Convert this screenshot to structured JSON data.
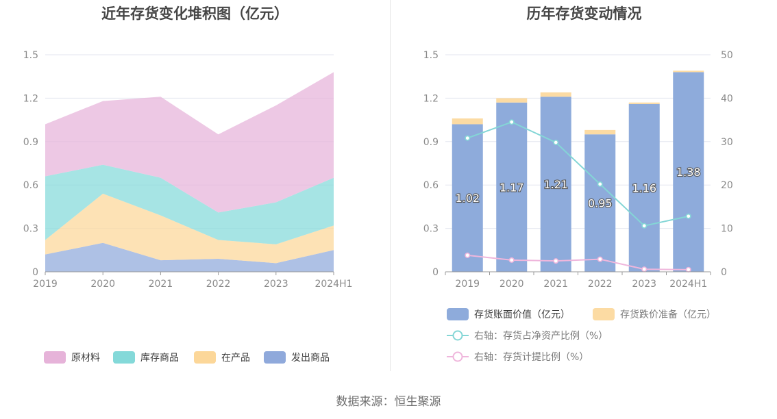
{
  "footer": {
    "source": "数据来源：恒生聚源"
  },
  "chart_data": [
    {
      "type": "area",
      "stacked": true,
      "title": "近年存货变化堆积图（亿元）",
      "categories": [
        "2019",
        "2020",
        "2021",
        "2022",
        "2023",
        "2024H1"
      ],
      "ylim": [
        0,
        1.5
      ],
      "yticks": [
        "0",
        "0.3",
        "0.6",
        "0.9",
        "1.2",
        "1.5"
      ],
      "grid": true,
      "legend_position": "bottom",
      "series": [
        {
          "name": "发出商品",
          "color": "#8fa9db",
          "values": [
            0.12,
            0.2,
            0.08,
            0.09,
            0.06,
            0.15
          ]
        },
        {
          "name": "在产品",
          "color": "#fcd799",
          "values": [
            0.1,
            0.34,
            0.31,
            0.13,
            0.13,
            0.17
          ]
        },
        {
          "name": "库存商品",
          "color": "#84d9d9",
          "values": [
            0.44,
            0.2,
            0.26,
            0.19,
            0.29,
            0.33
          ]
        },
        {
          "name": "原材料",
          "color": "#e6b3d9",
          "values": [
            0.36,
            0.44,
            0.56,
            0.54,
            0.67,
            0.73
          ]
        }
      ],
      "legend_order": [
        "原材料",
        "库存商品",
        "在产品",
        "发出商品"
      ]
    },
    {
      "type": "bar",
      "title": "历年存货变动情况",
      "categories": [
        "2019",
        "2020",
        "2021",
        "2022",
        "2023",
        "2024H1"
      ],
      "ylim": [
        0,
        1.5
      ],
      "yticks": [
        "0",
        "0.3",
        "0.6",
        "0.9",
        "1.2",
        "1.5"
      ],
      "y2lim": [
        0,
        50
      ],
      "y2ticks": [
        "0",
        "10",
        "20",
        "30",
        "40",
        "50"
      ],
      "grid": true,
      "legend_position": "bottom",
      "bars": [
        {
          "name": "存货账面价值（亿元）",
          "color": "#8eabdb",
          "values": [
            1.02,
            1.17,
            1.21,
            0.95,
            1.16,
            1.38
          ],
          "labels": [
            "1.02",
            "1.17",
            "1.21",
            "0.95",
            "1.16",
            "1.38"
          ]
        },
        {
          "name": "存货跌价准备（亿元）",
          "color": "#fcdba3",
          "values": [
            0.04,
            0.03,
            0.03,
            0.03,
            0.01,
            0.01
          ]
        }
      ],
      "lines": [
        {
          "name": "右轴：存货占净资产比例（%）",
          "color": "#84d6d6",
          "axis": "right",
          "values": [
            30.8,
            34.5,
            29.8,
            20.2,
            10.6,
            12.8
          ]
        },
        {
          "name": "右轴：存货计提比例（%）",
          "color": "#efb6dc",
          "axis": "right",
          "values": [
            3.8,
            2.7,
            2.5,
            2.9,
            0.6,
            0.5
          ]
        }
      ]
    }
  ]
}
